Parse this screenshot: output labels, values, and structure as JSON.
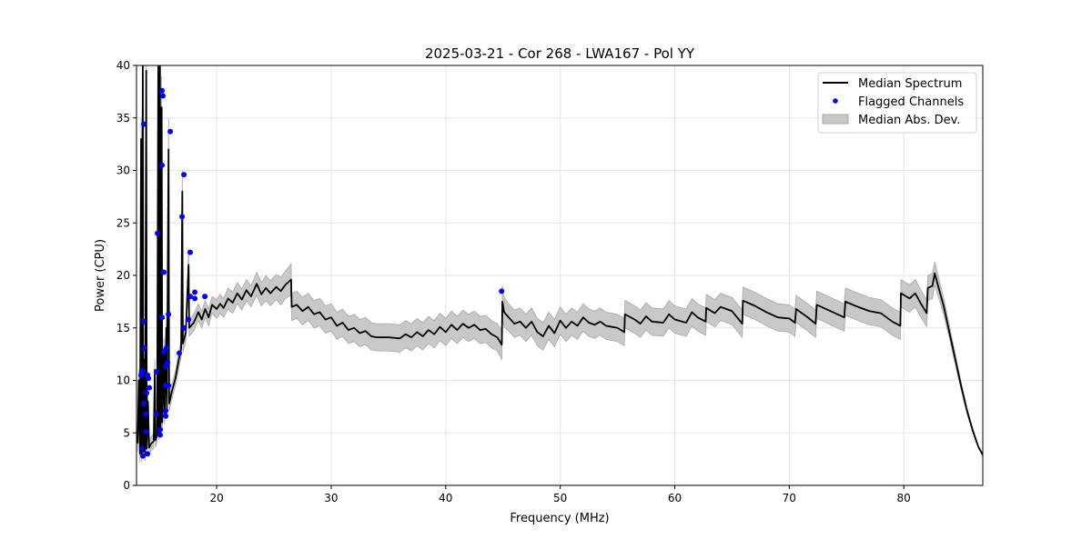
{
  "chart_data": {
    "type": "line",
    "title": "2025-03-21 - Cor 268 - LWA167 - Pol YY",
    "xlabel": "Frequency (MHz)",
    "ylabel": "Power (CPU)",
    "xlim": [
      13.0,
      86.9
    ],
    "ylim": [
      0,
      40
    ],
    "xticks": [
      20,
      30,
      40,
      50,
      60,
      70,
      80
    ],
    "xtick_labels": [
      "20",
      "30",
      "40",
      "50",
      "60",
      "70",
      "80"
    ],
    "yticks": [
      0,
      5,
      10,
      15,
      20,
      25,
      30,
      35,
      40
    ],
    "ytick_labels": [
      "0",
      "5",
      "10",
      "15",
      "20",
      "25",
      "30",
      "35",
      "40"
    ],
    "grid": true,
    "legend_position": "top-right",
    "legend": [
      "Median Spectrum",
      "Flagged Channels",
      "Median Abs. Dev."
    ],
    "colors": {
      "median": "#000000",
      "flagged": "#0000ff",
      "mad": "#c8c8c8",
      "mad_edge": "#a0a0a0"
    },
    "median_spectrum_x_y_mad": [
      [
        13.1,
        4,
        0.8
      ],
      [
        13.2,
        10,
        1
      ],
      [
        13.3,
        3,
        0.8
      ],
      [
        13.4,
        33,
        2
      ],
      [
        13.45,
        3,
        0.8
      ],
      [
        13.55,
        40,
        3
      ],
      [
        13.6,
        3.2,
        0.7
      ],
      [
        13.7,
        12,
        1
      ],
      [
        13.75,
        3,
        0.7
      ],
      [
        13.85,
        39.5,
        3
      ],
      [
        13.9,
        3.5,
        0.7
      ],
      [
        14.0,
        8,
        1
      ],
      [
        14.1,
        3.6,
        0.7
      ],
      [
        14.3,
        4,
        0.7
      ],
      [
        14.5,
        4.2,
        0.7
      ],
      [
        14.6,
        11,
        1
      ],
      [
        14.65,
        4.3,
        0.7
      ],
      [
        14.8,
        4.8,
        0.7
      ],
      [
        14.9,
        40,
        3
      ],
      [
        14.95,
        5,
        0.7
      ],
      [
        15.05,
        40,
        3
      ],
      [
        15.1,
        5.5,
        0.7
      ],
      [
        15.2,
        36,
        3
      ],
      [
        15.25,
        6,
        0.7
      ],
      [
        15.4,
        13,
        1
      ],
      [
        15.45,
        6.5,
        0.7
      ],
      [
        15.6,
        15,
        1
      ],
      [
        15.65,
        7,
        0.7
      ],
      [
        15.8,
        32,
        3
      ],
      [
        15.85,
        7.8,
        0.7
      ],
      [
        16.1,
        9,
        0.7
      ],
      [
        16.4,
        10.2,
        0.7
      ],
      [
        16.7,
        12,
        0.8
      ],
      [
        16.9,
        13,
        0.8
      ],
      [
        17.0,
        28,
        2
      ],
      [
        17.05,
        13.5,
        0.8
      ],
      [
        17.3,
        14.5,
        0.8
      ],
      [
        17.55,
        21,
        1.5
      ],
      [
        17.6,
        15,
        0.8
      ],
      [
        18,
        15.5,
        0.8
      ],
      [
        18.4,
        16.5,
        0.8
      ],
      [
        18.7,
        15.8,
        0.8
      ],
      [
        19,
        16.8,
        0.8
      ],
      [
        19.3,
        16.0,
        0.8
      ],
      [
        19.6,
        17.2,
        0.8
      ],
      [
        20,
        16.8,
        0.9
      ],
      [
        20.3,
        17.3,
        0.9
      ],
      [
        20.6,
        16.9,
        0.9
      ],
      [
        21,
        17.8,
        1
      ],
      [
        21.4,
        17.4,
        1
      ],
      [
        21.8,
        18.3,
        1
      ],
      [
        22.2,
        17.7,
        1
      ],
      [
        22.6,
        18.6,
        1
      ],
      [
        23,
        18,
        1
      ],
      [
        23.5,
        19.2,
        1.1
      ],
      [
        23.9,
        18.2,
        1.1
      ],
      [
        24.3,
        18.8,
        1.2
      ],
      [
        24.7,
        18.3,
        1.2
      ],
      [
        25.2,
        18.9,
        1.2
      ],
      [
        25.6,
        18.5,
        1.3
      ],
      [
        26.0,
        19.1,
        1.3
      ],
      [
        26.5,
        19.6,
        1.5
      ],
      [
        26.55,
        17.0,
        1.3
      ],
      [
        27,
        17.2,
        1.3
      ],
      [
        27.5,
        16.6,
        1.3
      ],
      [
        28,
        17.0,
        1.3
      ],
      [
        28.5,
        16.3,
        1.3
      ],
      [
        29,
        16.5,
        1.3
      ],
      [
        29.5,
        15.8,
        1.3
      ],
      [
        30,
        16.0,
        1.3
      ],
      [
        30.5,
        15.2,
        1.3
      ],
      [
        31,
        15.5,
        1.3
      ],
      [
        31.5,
        14.8,
        1.3
      ],
      [
        32,
        15.0,
        1.3
      ],
      [
        32.5,
        14.5,
        1.3
      ],
      [
        33,
        14.7,
        1.3
      ],
      [
        33.5,
        14.2,
        1.3
      ],
      [
        34,
        14.1,
        1.3
      ],
      [
        35,
        14.1,
        1.3
      ],
      [
        36,
        14.0,
        1.3
      ],
      [
        36.5,
        14.4,
        1.3
      ],
      [
        37,
        14.1,
        1.3
      ],
      [
        37.5,
        14.6,
        1.3
      ],
      [
        38,
        14.2,
        1.3
      ],
      [
        38.5,
        14.8,
        1.3
      ],
      [
        39,
        14.4,
        1.3
      ],
      [
        39.5,
        15.1,
        1.3
      ],
      [
        40,
        14.6,
        1.3
      ],
      [
        40.5,
        15.3,
        1.3
      ],
      [
        41,
        14.8,
        1.3
      ],
      [
        41.5,
        15.4,
        1.3
      ],
      [
        42,
        15.0,
        1.3
      ],
      [
        42.5,
        15.3,
        1.3
      ],
      [
        43,
        14.8,
        1.3
      ],
      [
        43.5,
        14.9,
        1.3
      ],
      [
        44,
        14.4,
        1.3
      ],
      [
        44.5,
        14.1,
        1.3
      ],
      [
        44.9,
        13.4,
        1.4
      ],
      [
        44.95,
        17.5,
        1.5
      ],
      [
        45.1,
        16.5,
        1.4
      ],
      [
        45.5,
        16.0,
        1.3
      ],
      [
        46,
        15.4,
        1.3
      ],
      [
        46.5,
        15.6,
        1.3
      ],
      [
        47,
        15.0,
        1.3
      ],
      [
        47.5,
        15.6,
        1.3
      ],
      [
        48,
        14.6,
        1.3
      ],
      [
        48.5,
        14.2,
        1.3
      ],
      [
        49,
        15.2,
        1.3
      ],
      [
        49.5,
        14.5,
        1.3
      ],
      [
        50,
        15.7,
        1.3
      ],
      [
        50.5,
        15.0,
        1.3
      ],
      [
        51,
        15.6,
        1.3
      ],
      [
        51.5,
        15.2,
        1.3
      ],
      [
        52,
        16.0,
        1.3
      ],
      [
        52.5,
        15.5,
        1.3
      ],
      [
        53,
        15.3,
        1.3
      ],
      [
        53.5,
        15.6,
        1.3
      ],
      [
        54,
        15.2,
        1.3
      ],
      [
        55,
        15.0,
        1.3
      ],
      [
        55.6,
        14.6,
        1.3
      ],
      [
        55.65,
        16.3,
        1.3
      ],
      [
        56.5,
        15.8,
        1.3
      ],
      [
        57,
        15.4,
        1.3
      ],
      [
        57.5,
        16.1,
        1.3
      ],
      [
        58,
        15.6,
        1.3
      ],
      [
        59,
        15.5,
        1.3
      ],
      [
        59.5,
        16.3,
        1.3
      ],
      [
        60,
        15.8,
        1.3
      ],
      [
        61,
        15.5,
        1.3
      ],
      [
        61.5,
        16.5,
        1.3
      ],
      [
        62,
        16.0,
        1.3
      ],
      [
        62.7,
        15.6,
        1.3
      ],
      [
        62.75,
        16.9,
        1.3
      ],
      [
        63.5,
        16.4,
        1.3
      ],
      [
        64,
        17.0,
        1.3
      ],
      [
        65,
        16.6,
        1.3
      ],
      [
        65.9,
        15.4,
        1.3
      ],
      [
        65.95,
        17.6,
        1.3
      ],
      [
        67,
        17.1,
        1.3
      ],
      [
        68,
        16.5,
        1.3
      ],
      [
        69,
        16.0,
        1.3
      ],
      [
        70,
        15.9,
        1.3
      ],
      [
        70.5,
        15.5,
        1.3
      ],
      [
        70.6,
        16.8,
        1.3
      ],
      [
        71.5,
        16.1,
        1.3
      ],
      [
        72.3,
        15.4,
        1.3
      ],
      [
        72.4,
        17.2,
        1.3
      ],
      [
        73,
        16.9,
        1.3
      ],
      [
        74,
        16.4,
        1.3
      ],
      [
        74.8,
        16,
        1.3
      ],
      [
        74.9,
        17.5,
        1.3
      ],
      [
        76,
        17.0,
        1.3
      ],
      [
        77,
        16.6,
        1.3
      ],
      [
        78,
        16.4,
        1.3
      ],
      [
        79,
        15.6,
        1.3
      ],
      [
        79.7,
        15.2,
        1.3
      ],
      [
        79.75,
        18.3,
        1.3
      ],
      [
        80.5,
        17.8,
        1.3
      ],
      [
        81,
        18.3,
        1.3
      ],
      [
        81.5,
        17.3,
        1.3
      ],
      [
        82,
        16.4,
        1.3
      ],
      [
        82.1,
        18.8,
        1.2
      ],
      [
        82.5,
        19.0,
        1.2
      ],
      [
        82.7,
        20.2,
        1.1
      ],
      [
        83.0,
        19.0,
        1
      ],
      [
        83.5,
        17.0,
        0.8
      ],
      [
        84,
        14.5,
        0.6
      ],
      [
        84.5,
        12,
        0.5
      ],
      [
        85,
        9.5,
        0.4
      ],
      [
        85.5,
        7.2,
        0.3
      ],
      [
        86,
        5.3,
        0.2
      ],
      [
        86.5,
        3.7,
        0.1
      ],
      [
        87,
        2.7,
        0.1
      ]
    ],
    "flagged_channels_x_y": [
      [
        13.64,
        34.4
      ],
      [
        13.64,
        15.6
      ],
      [
        13.72,
        13.1
      ],
      [
        13.56,
        10.9
      ],
      [
        13.4,
        10.5
      ],
      [
        13.96,
        10.5
      ],
      [
        14.04,
        10.2
      ],
      [
        13.88,
        8.8
      ],
      [
        14.12,
        9.3
      ],
      [
        13.64,
        7.8
      ],
      [
        13.8,
        6.8
      ],
      [
        13.88,
        5.1
      ],
      [
        13.48,
        3.5
      ],
      [
        13.56,
        2.8
      ],
      [
        13.96,
        3.0
      ],
      [
        14.83,
        24.0
      ],
      [
        15.23,
        37.6
      ],
      [
        15.31,
        37.1
      ],
      [
        15.23,
        30.5
      ],
      [
        15.95,
        33.7
      ],
      [
        15.39,
        20.3
      ],
      [
        15.23,
        16.0
      ],
      [
        15.79,
        16.3
      ],
      [
        15.63,
        13.1
      ],
      [
        15.39,
        12.7
      ],
      [
        15.55,
        11.3
      ],
      [
        15.71,
        11.7
      ],
      [
        14.75,
        10.8
      ],
      [
        15.55,
        9.5
      ],
      [
        15.79,
        9.5
      ],
      [
        15.55,
        7.1
      ],
      [
        15.55,
        6.6
      ],
      [
        14.75,
        6.8
      ],
      [
        15.07,
        5.3
      ],
      [
        15.07,
        4.8
      ],
      [
        16.98,
        25.6
      ],
      [
        17.14,
        29.6
      ],
      [
        17.69,
        22.2
      ],
      [
        17.69,
        18.0
      ],
      [
        18.09,
        18.4
      ],
      [
        18.09,
        17.8
      ],
      [
        18.97,
        18.0
      ],
      [
        17.54,
        15.8
      ],
      [
        17.14,
        15.0
      ],
      [
        16.74,
        12.6
      ],
      [
        44.88,
        18.5
      ]
    ]
  }
}
